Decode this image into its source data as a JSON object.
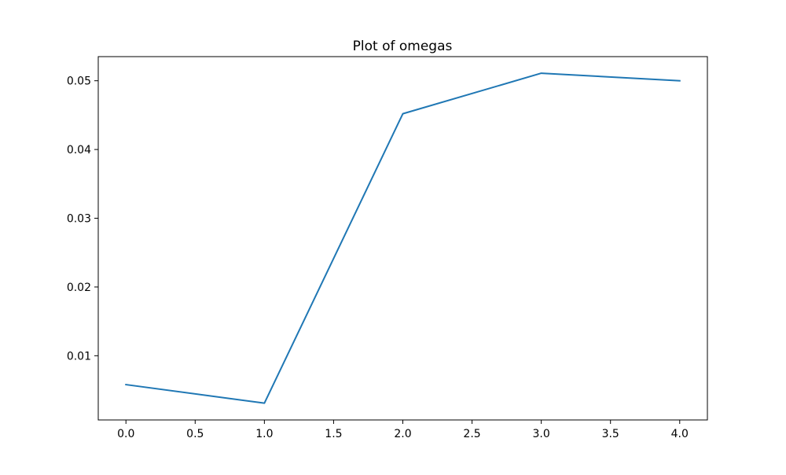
{
  "chart_data": {
    "type": "line",
    "title": "Plot of omegas",
    "xlabel": "",
    "ylabel": "",
    "x": [
      0,
      1,
      2,
      3,
      4
    ],
    "series": [
      {
        "values": [
          0.0058,
          0.0031,
          0.0452,
          0.0511,
          0.05
        ],
        "color": "#1f77b4"
      }
    ],
    "xlim": [
      -0.2,
      4.2
    ],
    "ylim": [
      0.00066,
      0.05351
    ],
    "xticks": [
      0.0,
      0.5,
      1.0,
      1.5,
      2.0,
      2.5,
      3.0,
      3.5,
      4.0
    ],
    "xtick_labels": [
      "0.0",
      "0.5",
      "1.0",
      "1.5",
      "2.0",
      "2.5",
      "3.0",
      "3.5",
      "4.0"
    ],
    "yticks": [
      0.01,
      0.02,
      0.03,
      0.04,
      0.05
    ],
    "ytick_labels": [
      "0.01",
      "0.02",
      "0.03",
      "0.04",
      "0.05"
    ],
    "grid": false,
    "legend": "none"
  }
}
